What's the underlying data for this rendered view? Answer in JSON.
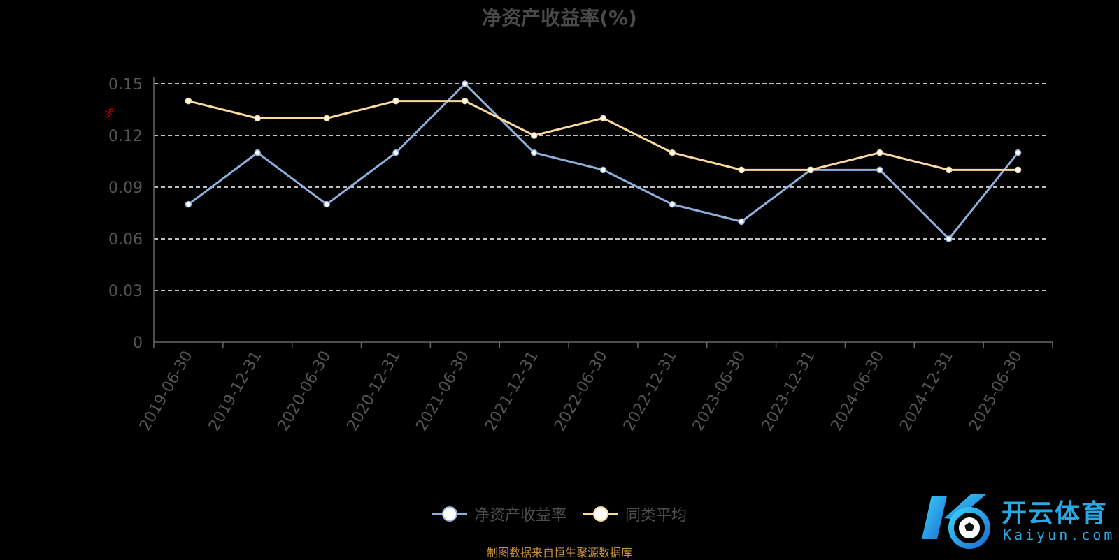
{
  "title": "净资产收益率(%)",
  "source_note": "制图数据来自恒生聚源数据库",
  "logo": {
    "icon": "kaiyun-k-ball-logo",
    "name": "开云体育",
    "sub": "Kaiyun.com"
  },
  "colors": {
    "background": "#000000",
    "series1": "#8fb0dc",
    "series2": "#fbd99d",
    "grid": "#ffffff",
    "axis": "#666666",
    "unit": "#cc0000"
  },
  "chart_data": {
    "type": "line",
    "title": "净资产收益率(%)",
    "ylabel": "%",
    "ylim": [
      0,
      0.15
    ],
    "yticks": [
      "0",
      "0.03",
      "0.06",
      "0.09",
      "0.12",
      "0.15"
    ],
    "grid": true,
    "legend_position": "bottom",
    "categories": [
      "2019-06-30",
      "2019-12-31",
      "2020-06-30",
      "2020-12-31",
      "2021-06-30",
      "2021-12-31",
      "2022-06-30",
      "2022-12-31",
      "2023-06-30",
      "2023-12-31",
      "2024-06-30",
      "2024-12-31",
      "2025-06-30"
    ],
    "series": [
      {
        "name": "净资产收益率",
        "color": "#8fb0dc",
        "values": [
          0.08,
          0.11,
          0.08,
          0.11,
          0.15,
          0.11,
          0.1,
          0.08,
          0.07,
          0.1,
          0.1,
          0.06,
          0.11
        ]
      },
      {
        "name": "同类平均",
        "color": "#fbd99d",
        "values": [
          0.14,
          0.13,
          0.13,
          0.14,
          0.14,
          0.12,
          0.13,
          0.11,
          0.1,
          0.1,
          0.11,
          0.1,
          0.1
        ]
      }
    ]
  }
}
